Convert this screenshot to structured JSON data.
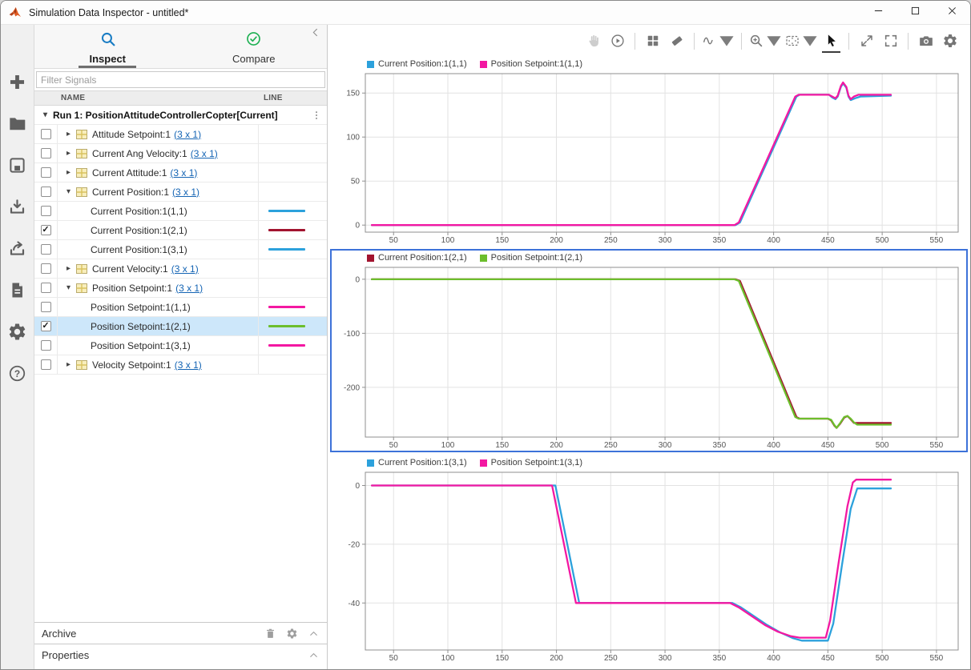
{
  "window": {
    "title": "Simulation Data Inspector - untitled*",
    "controls": [
      {
        "icon": "minimize"
      },
      {
        "icon": "maximize"
      },
      {
        "icon": "close"
      }
    ]
  },
  "left_toolbar": {
    "items": [
      {
        "icon": "add"
      },
      {
        "icon": "open-folder"
      },
      {
        "icon": "save"
      },
      {
        "icon": "import"
      },
      {
        "icon": "export"
      },
      {
        "icon": "create-report"
      },
      {
        "icon": "preferences"
      },
      {
        "icon": "help"
      }
    ]
  },
  "tabs": {
    "items": [
      {
        "label": "Inspect",
        "icon": "search",
        "active": true
      },
      {
        "label": "Compare",
        "icon": "check-circle",
        "active": false
      }
    ],
    "collapse_icon": "chevron-left"
  },
  "filter": {
    "placeholder": "Filter Signals"
  },
  "table": {
    "columns": [
      "NAME",
      "LINE"
    ]
  },
  "tree": {
    "run_header": "Run 1: PositionAttitudeControllerCopter[Current]",
    "rows": [
      {
        "type": "group",
        "label": "Attitude Setpoint:1",
        "dims": "(3 x 1)",
        "expanded": false,
        "checked": false
      },
      {
        "type": "group",
        "label": "Current Ang Velocity:1",
        "dims": "(3 x 1)",
        "expanded": false,
        "checked": false
      },
      {
        "type": "group",
        "label": "Current Attitude:1",
        "dims": "(3 x 1)",
        "expanded": false,
        "checked": false
      },
      {
        "type": "group",
        "label": "Current Position:1",
        "dims": "(3 x 1)",
        "expanded": true,
        "checked": false
      },
      {
        "type": "signal",
        "label": "Current Position:1(1,1)",
        "checked": false,
        "line_color": "#2CA1DC"
      },
      {
        "type": "signal",
        "label": "Current Position:1(2,1)",
        "checked": true,
        "line_color": "#A2142F"
      },
      {
        "type": "signal",
        "label": "Current Position:1(3,1)",
        "checked": false,
        "line_color": "#2CA1DC"
      },
      {
        "type": "group",
        "label": "Current Velocity:1",
        "dims": "(3 x 1)",
        "expanded": false,
        "checked": false
      },
      {
        "type": "group",
        "label": "Position Setpoint:1",
        "dims": "(3 x 1)",
        "expanded": true,
        "checked": false
      },
      {
        "type": "signal",
        "label": "Position Setpoint:1(1,1)",
        "checked": false,
        "line_color": "#F318A2"
      },
      {
        "type": "signal",
        "label": "Position Setpoint:1(2,1)",
        "checked": true,
        "line_color": "#6CBE2C",
        "selected": true
      },
      {
        "type": "signal",
        "label": "Position Setpoint:1(3,1)",
        "checked": false,
        "line_color": "#F318A2"
      },
      {
        "type": "group",
        "label": "Velocity Setpoint:1",
        "dims": "(3 x 1)",
        "expanded": false,
        "checked": false
      }
    ]
  },
  "archive": {
    "label": "Archive",
    "icons": [
      "trash",
      "gear",
      "chevron-up"
    ]
  },
  "properties": {
    "label": "Properties",
    "icons": [
      "chevron-up"
    ]
  },
  "plot_toolbar": {
    "items": [
      {
        "icon": "hand",
        "state": "disabled"
      },
      {
        "icon": "replay"
      },
      {
        "divider": true
      },
      {
        "icon": "layout-grid"
      },
      {
        "icon": "eraser"
      },
      {
        "divider": true
      },
      {
        "icon": "signal-wave",
        "caret": true
      },
      {
        "divider": true
      },
      {
        "icon": "zoom-in",
        "caret": true
      },
      {
        "icon": "fit-to-view",
        "caret": true
      },
      {
        "icon": "pointer",
        "state": "active"
      },
      {
        "divider": true
      },
      {
        "icon": "expand-diagonal"
      },
      {
        "icon": "fullscreen"
      },
      {
        "divider": true
      },
      {
        "icon": "camera"
      },
      {
        "icon": "gear"
      }
    ]
  },
  "colors": {
    "selection_border": "#3D72D9",
    "row_highlight": "#CDE7FA",
    "link": "#1464B4",
    "series_blue": "#2CA1DC",
    "series_magenta": "#F318A2",
    "series_dark_red": "#A2142F",
    "series_green": "#6CBE2C"
  },
  "chart_data": [
    {
      "type": "line",
      "title": "",
      "xlabel": "",
      "ylabel": "",
      "grid": true,
      "legend_position": "top-left",
      "selected": false,
      "xlim": [
        24,
        570
      ],
      "ylim": [
        -8,
        172
      ],
      "x_ticks": [
        50,
        100,
        150,
        200,
        250,
        300,
        350,
        400,
        450,
        500,
        550
      ],
      "y_ticks": [
        0,
        50,
        100,
        150
      ],
      "series": [
        {
          "name": "Current Position:1(1,1)",
          "color": "#2CA1DC",
          "points": [
            [
              30,
              0
            ],
            [
              365,
              0
            ],
            [
              369,
              3
            ],
            [
              421,
              146
            ],
            [
              424,
              148
            ],
            [
              451,
              148
            ],
            [
              454,
              145
            ],
            [
              457,
              143
            ],
            [
              459,
              146
            ],
            [
              462,
              157
            ],
            [
              464,
              161
            ],
            [
              467,
              156
            ],
            [
              469,
              146
            ],
            [
              471,
              142
            ],
            [
              475,
              144
            ],
            [
              480,
              146
            ],
            [
              508,
              147
            ]
          ]
        },
        {
          "name": "Position Setpoint:1(1,1)",
          "color": "#F318A2",
          "points": [
            [
              30,
              0
            ],
            [
              364,
              0
            ],
            [
              368,
              3
            ],
            [
              420,
              146
            ],
            [
              423,
              148
            ],
            [
              451,
              148
            ],
            [
              454,
              146
            ],
            [
              457,
              144
            ],
            [
              459,
              147
            ],
            [
              462,
              158
            ],
            [
              464,
              162
            ],
            [
              467,
              157
            ],
            [
              469,
              147
            ],
            [
              471,
              143
            ],
            [
              474,
              146
            ],
            [
              478,
              148
            ],
            [
              508,
              148
            ]
          ]
        }
      ]
    },
    {
      "type": "line",
      "title": "",
      "xlabel": "",
      "ylabel": "",
      "grid": true,
      "legend_position": "top-left",
      "selected": true,
      "xlim": [
        24,
        570
      ],
      "ylim": [
        -292,
        22
      ],
      "x_ticks": [
        50,
        100,
        150,
        200,
        250,
        300,
        350,
        400,
        450,
        500,
        550
      ],
      "y_ticks": [
        0,
        -100,
        -200
      ],
      "series": [
        {
          "name": "Current Position:1(2,1)",
          "color": "#A2142F",
          "points": [
            [
              30,
              0
            ],
            [
              365,
              0
            ],
            [
              369,
              -3
            ],
            [
              421,
              -255
            ],
            [
              424,
              -258
            ],
            [
              450,
              -258
            ],
            [
              453,
              -261
            ],
            [
              456,
              -271
            ],
            [
              458,
              -275
            ],
            [
              461,
              -268
            ],
            [
              465,
              -256
            ],
            [
              468,
              -253
            ],
            [
              471,
              -259
            ],
            [
              474,
              -266
            ],
            [
              478,
              -266
            ],
            [
              508,
              -266
            ]
          ]
        },
        {
          "name": "Position Setpoint:1(2,1)",
          "color": "#6CBE2C",
          "points": [
            [
              30,
              0
            ],
            [
              364,
              0
            ],
            [
              368,
              -3
            ],
            [
              420,
              -255
            ],
            [
              423,
              -258
            ],
            [
              450,
              -258
            ],
            [
              453,
              -260
            ],
            [
              456,
              -270
            ],
            [
              458,
              -275
            ],
            [
              461,
              -267
            ],
            [
              465,
              -255
            ],
            [
              468,
              -253
            ],
            [
              471,
              -258
            ],
            [
              474,
              -265
            ],
            [
              477,
              -269
            ],
            [
              508,
              -269
            ]
          ]
        }
      ]
    },
    {
      "type": "line",
      "title": "",
      "xlabel": "",
      "ylabel": "",
      "grid": true,
      "legend_position": "top-left",
      "selected": false,
      "xlim": [
        24,
        570
      ],
      "ylim": [
        -56,
        4.5
      ],
      "x_ticks": [
        50,
        100,
        150,
        200,
        250,
        300,
        350,
        400,
        450,
        500,
        550
      ],
      "y_ticks": [
        0,
        -20,
        -40
      ],
      "series": [
        {
          "name": "Current Position:1(3,1)",
          "color": "#2CA1DC",
          "points": [
            [
              30,
              0
            ],
            [
              199,
              0
            ],
            [
              221,
              -40
            ],
            [
              362,
              -40
            ],
            [
              370,
              -41.5
            ],
            [
              382,
              -44.5
            ],
            [
              394,
              -47.5
            ],
            [
              406,
              -50
            ],
            [
              418,
              -52
            ],
            [
              426,
              -52.8
            ],
            [
              450,
              -52.8
            ],
            [
              455,
              -47
            ],
            [
              463,
              -27
            ],
            [
              471,
              -8
            ],
            [
              477,
              -1
            ],
            [
              508,
              -1
            ]
          ]
        },
        {
          "name": "Position Setpoint:1(3,1)",
          "color": "#F318A2",
          "points": [
            [
              30,
              0
            ],
            [
              196,
              0
            ],
            [
              218,
              -40
            ],
            [
              360,
              -40
            ],
            [
              368,
              -41.5
            ],
            [
              380,
              -44.5
            ],
            [
              392,
              -47.5
            ],
            [
              404,
              -49.8
            ],
            [
              416,
              -51.3
            ],
            [
              424,
              -51.8
            ],
            [
              448,
              -51.8
            ],
            [
              452,
              -46
            ],
            [
              460,
              -26
            ],
            [
              468,
              -7
            ],
            [
              473,
              1
            ],
            [
              476,
              2
            ],
            [
              508,
              2
            ]
          ]
        }
      ]
    }
  ]
}
